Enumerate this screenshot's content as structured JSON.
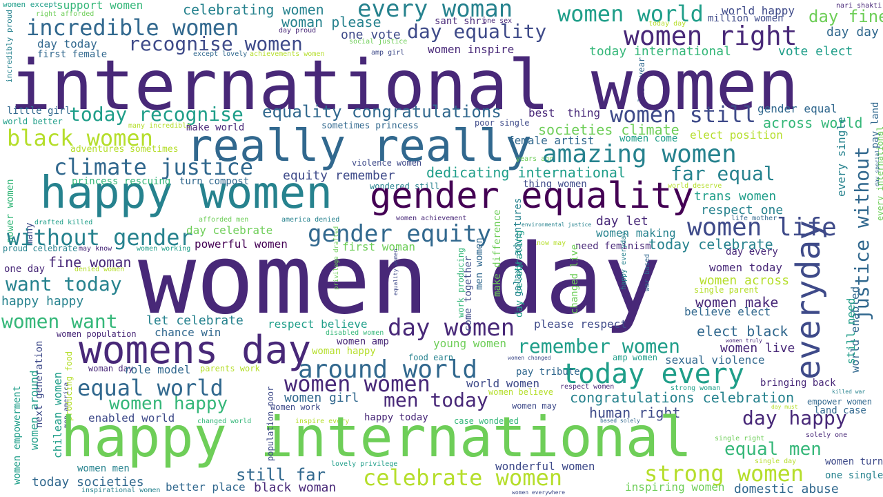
{
  "colors": {
    "c1": "#440154",
    "c2": "#482878",
    "c3": "#3e4a89",
    "c4": "#31688e",
    "c5": "#26828e",
    "c6": "#1f9e89",
    "c7": "#35b779",
    "c8": "#6ece58",
    "c9": "#b5de2b",
    "c10": "#fde725"
  },
  "words": [
    "women except",
    "right afforded",
    "support women",
    "celebrating women",
    "every woman",
    "women world",
    "world happy",
    "nari shakti",
    "incredible women",
    "sant shri",
    "one sex",
    "woman please",
    "day equality",
    "million women",
    "today day",
    "day fine",
    "incredibly proud",
    "day proud",
    "one vote",
    "women right",
    "day day",
    "recognise women",
    "social justice",
    "amp girl",
    "day today",
    "women inspire",
    "first female",
    "except lovely",
    "achievements women",
    "today international",
    "vote elect",
    "last year",
    "international women",
    "little girl",
    "best",
    "thing",
    "gender equal",
    "world better",
    "equality congratulations",
    "today recognise",
    "women still",
    "pay land",
    "many incredible",
    "make world",
    "sometimes princess",
    "poor single",
    "societies climate",
    "across world",
    "black women",
    "really really",
    "elect position",
    "adventures sometimes",
    "female artist",
    "women come",
    "climate justice",
    "years ago",
    "amazing women",
    "violence women",
    "every single",
    "dedicating international",
    "equity remember",
    "far equal",
    "happy women",
    "princess rescuing",
    "turn compost",
    "thing women",
    "wondered still",
    "world deserve",
    "power women",
    "gender equality",
    "everyday",
    "trans women",
    "drafted killed",
    "many",
    "afforded men",
    "america denied",
    "women achievement",
    "respect one",
    "justice without",
    "day let",
    "environmental justice",
    "life mother",
    "without gender",
    "gender equity",
    "day celebrate",
    "women life",
    "women making",
    "proud celebrate",
    "may know",
    "women working",
    "powerful women",
    "first woman",
    "know may",
    "need feminism",
    "today celebrate",
    "women day",
    "one day",
    "denied women",
    "fine woman",
    "day every",
    "women today",
    "want today",
    "women across",
    "single parent",
    "happy happy",
    "women make",
    "believe elect",
    "women want",
    "let celebrate",
    "respect believe",
    "please respect",
    "day women",
    "women population",
    "chance win",
    "disabled women",
    "elect black",
    "women amp",
    "young women",
    "remember women",
    "womens day",
    "women live",
    "woman happy",
    "around world",
    "sexual violence",
    "women truly",
    "world enabled",
    "woman day",
    "role model",
    "parents work",
    "food earn",
    "women changed",
    "amp women",
    "still need",
    "every international",
    "day special",
    "equal world",
    "today every",
    "pay tribute",
    "women women",
    "world women",
    "bringing back",
    "respect women",
    "strong woman",
    "women empowerment",
    "women around",
    "men america",
    "chilean women",
    "next generation",
    "killed war",
    "women believe",
    "women happy",
    "women girl",
    "men today",
    "congratulations celebration",
    "empower women",
    "land case",
    "women may",
    "producing food",
    "women work",
    "day must",
    "enabled world",
    "happy today",
    "changed world",
    "inspire every",
    "case wondered",
    "human right",
    "based solely",
    "day happy",
    "happy international",
    "single right",
    "solely one",
    "equal men",
    "population poor",
    "lovely privilege",
    "single day",
    "women turn",
    "still far",
    "women men",
    "wonderful women",
    "celebrate women",
    "strong women",
    "one single",
    "today societies",
    "better place",
    "inspirational women",
    "black woman",
    "women everywhere",
    "inspiring women",
    "domestic abuse",
    "privilege drafted",
    "equality women",
    "work producing",
    "come together",
    "men women",
    "make difference",
    "galaxy adventures",
    "day celebrating",
    "changed live",
    "happy everyday",
    "war based"
  ]
}
